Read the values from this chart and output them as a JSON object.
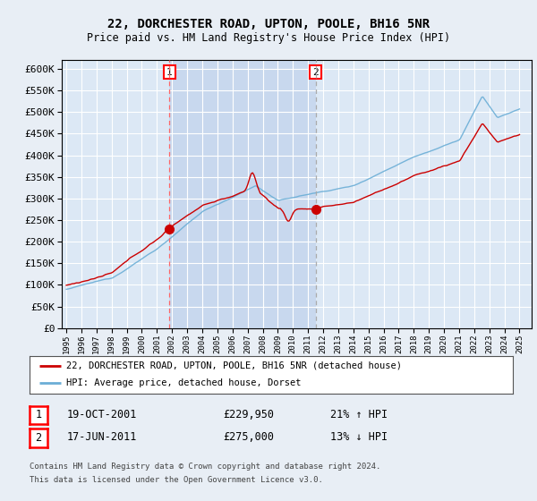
{
  "title": "22, DORCHESTER ROAD, UPTON, POOLE, BH16 5NR",
  "subtitle": "Price paid vs. HM Land Registry's House Price Index (HPI)",
  "background_color": "#e8eef5",
  "plot_bg_color": "#dce8f5",
  "shaded_bg_color": "#c8d8ee",
  "grid_color": "#ffffff",
  "sale1_price": 229950,
  "sale2_price": 275000,
  "legend_line1": "22, DORCHESTER ROAD, UPTON, POOLE, BH16 5NR (detached house)",
  "legend_line2": "HPI: Average price, detached house, Dorset",
  "table_row1": [
    "1",
    "19-OCT-2001",
    "£229,950",
    "21% ↑ HPI"
  ],
  "table_row2": [
    "2",
    "17-JUN-2011",
    "£275,000",
    "13% ↓ HPI"
  ],
  "footnote1": "Contains HM Land Registry data © Crown copyright and database right 2024.",
  "footnote2": "This data is licensed under the Open Government Licence v3.0.",
  "hpi_color": "#6baed6",
  "price_color": "#cc0000",
  "ylim_min": 0,
  "ylim_max": 620000,
  "yticks": [
    0,
    50000,
    100000,
    150000,
    200000,
    250000,
    300000,
    350000,
    400000,
    450000,
    500000,
    550000,
    600000
  ]
}
